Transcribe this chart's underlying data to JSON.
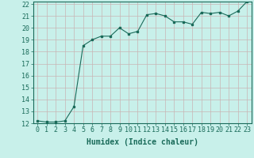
{
  "x": [
    0,
    1,
    2,
    3,
    4,
    5,
    6,
    7,
    8,
    9,
    10,
    11,
    12,
    13,
    14,
    15,
    16,
    17,
    18,
    19,
    20,
    21,
    22,
    23
  ],
  "y": [
    12.2,
    12.1,
    12.1,
    12.2,
    13.4,
    18.5,
    19.0,
    19.3,
    19.3,
    20.0,
    19.5,
    19.7,
    21.1,
    21.2,
    21.0,
    20.5,
    20.5,
    20.3,
    21.3,
    21.2,
    21.3,
    21.0,
    21.4,
    22.2
  ],
  "line_color": "#1a6b5a",
  "bg_color": "#c8f0ea",
  "grid_color": "#c8b4b4",
  "xlabel": "Humidex (Indice chaleur)",
  "ylim": [
    12,
    22
  ],
  "xlim": [
    -0.5,
    23.5
  ],
  "yticks": [
    12,
    13,
    14,
    15,
    16,
    17,
    18,
    19,
    20,
    21,
    22
  ],
  "xticks": [
    0,
    1,
    2,
    3,
    4,
    5,
    6,
    7,
    8,
    9,
    10,
    11,
    12,
    13,
    14,
    15,
    16,
    17,
    18,
    19,
    20,
    21,
    22,
    23
  ],
  "xtick_labels": [
    "0",
    "1",
    "2",
    "3",
    "4",
    "5",
    "6",
    "7",
    "8",
    "9",
    "10",
    "11",
    "12",
    "13",
    "14",
    "15",
    "16",
    "17",
    "18",
    "19",
    "20",
    "21",
    "22",
    "23"
  ],
  "font_color": "#1a6b5a",
  "tick_fontsize": 6,
  "xlabel_fontsize": 7
}
